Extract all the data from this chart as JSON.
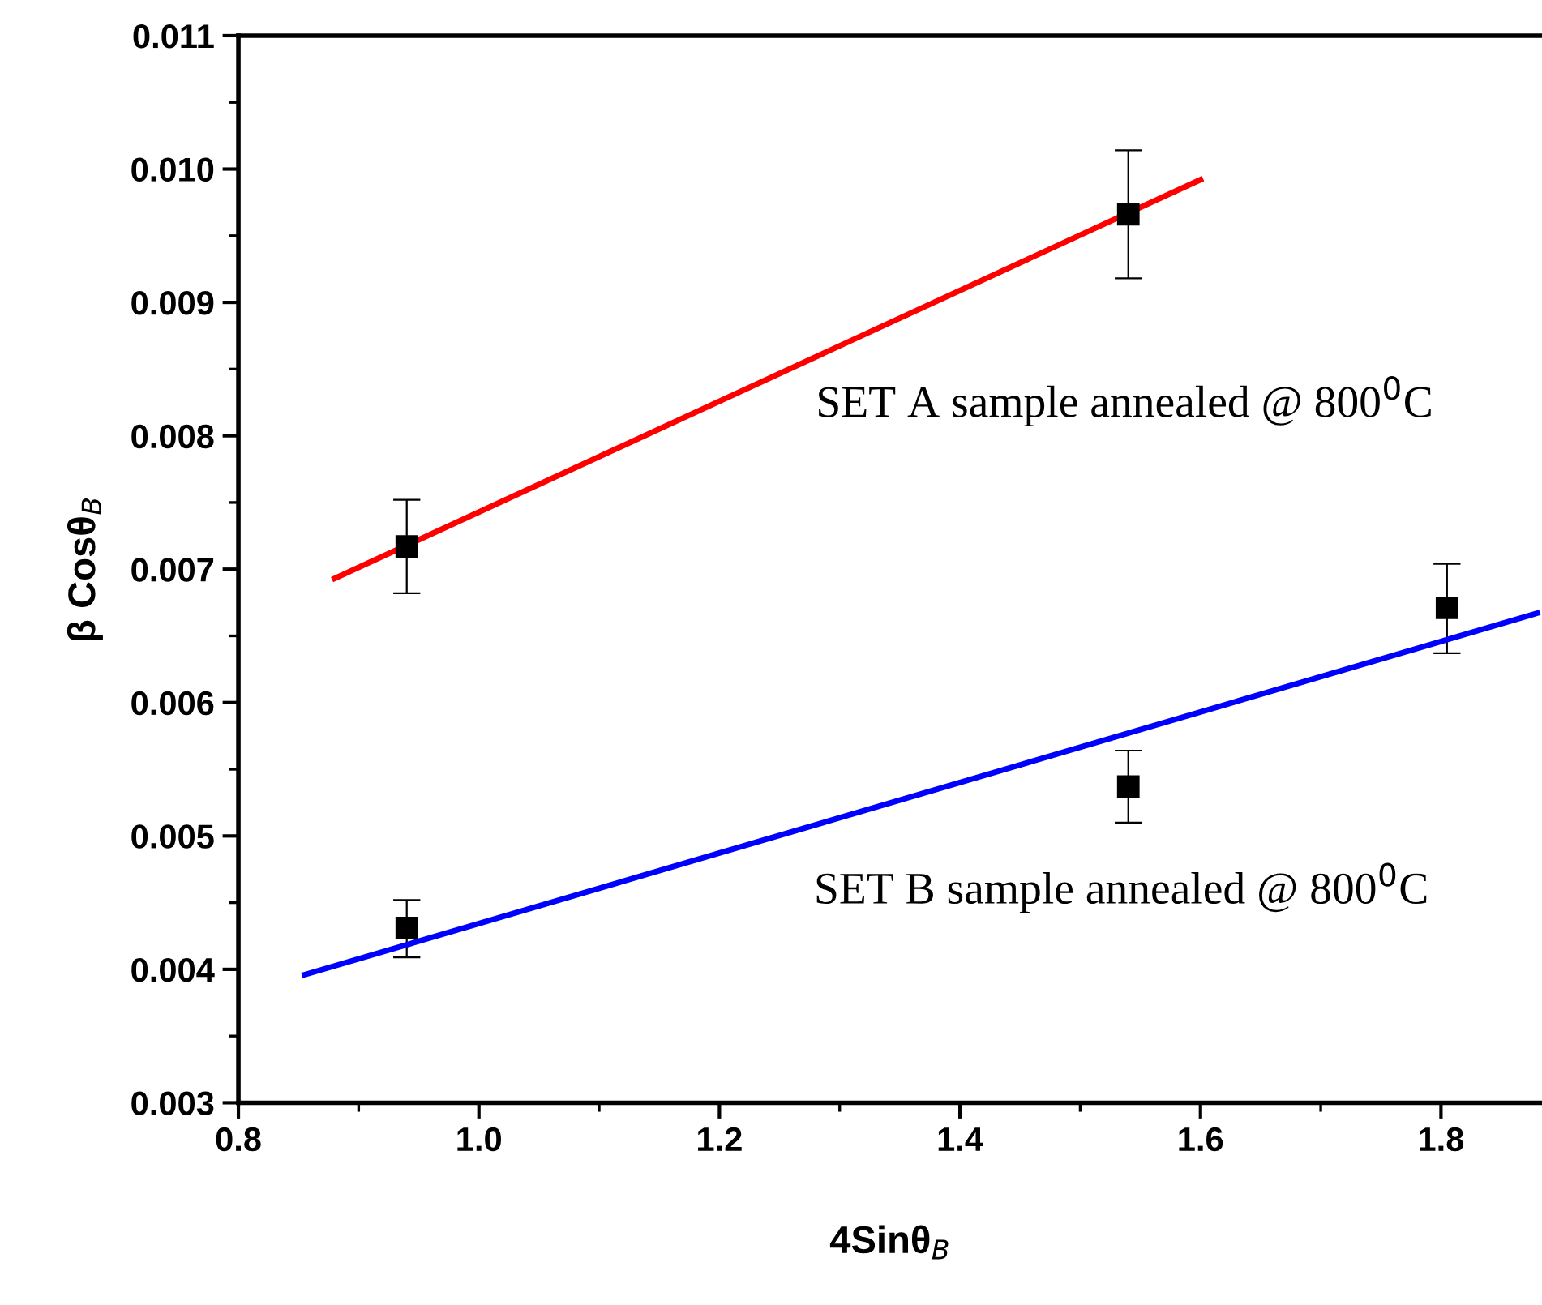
{
  "chart_data": {
    "type": "scatter",
    "xlabel": "4Sinθ$_{B}$",
    "ylabel": "β Cosθ$_{B}$",
    "series": [
      {
        "color": "#000000",
        "marker": "square",
        "x": [
          0.94,
          1.54
        ],
        "values": [
          0.00717,
          0.00966
        ],
        "errors": [
          [
            0.00682,
            0.00752
          ],
          [
            0.00918,
            0.01014
          ]
        ]
      },
      {
        "type": "line",
        "color": "#ff0000",
        "marker": "none",
        "x": [
          0.88,
          1.6
        ],
        "values": [
          0.00693,
          0.00992
        ]
      },
      {
        "color": "#000000",
        "marker": "square",
        "x": [
          0.94,
          1.54,
          1.805
        ],
        "values": [
          0.00431,
          0.00537,
          0.00671
        ],
        "errors": [
          [
            0.00409,
            0.00452
          ],
          [
            0.0051,
            0.00564
          ],
          [
            0.00637,
            0.00704
          ]
        ]
      },
      {
        "type": "line",
        "color": "#0000ff",
        "marker": "none",
        "x": [
          0.855,
          1.88
        ],
        "values": [
          0.00396,
          0.00667
        ]
      }
    ],
    "annotations": [
      "SET A sample annealed @ 800$^{0}$C",
      "SET B sample annealed @ 800$^{0}$C"
    ],
    "xlim": [
      0.8,
      1.884
    ],
    "xticks": [
      {
        "value": 0.8,
        "label": "0.8"
      },
      {
        "value": 1.0,
        "label": "1.0"
      },
      {
        "value": 1.2,
        "label": "1.2"
      },
      {
        "value": 1.4,
        "label": "1.4"
      },
      {
        "value": 1.6,
        "label": "1.6"
      },
      {
        "value": 1.8,
        "label": "1.8"
      }
    ],
    "ylim": [
      0.003,
      0.011
    ],
    "yticks": [
      {
        "value": 0.003,
        "label": "0.003"
      },
      {
        "value": 0.004,
        "label": "0.004"
      },
      {
        "value": 0.005,
        "label": "0.005"
      },
      {
        "value": 0.006,
        "label": "0.006"
      },
      {
        "value": 0.007,
        "label": "0.007"
      },
      {
        "value": 0.008,
        "label": "0.008"
      },
      {
        "value": 0.009,
        "label": "0.009"
      },
      {
        "value": 0.01,
        "label": "0.010"
      },
      {
        "value": 0.011,
        "label": "0.011"
      }
    ],
    "grid": false,
    "legend": false
  }
}
